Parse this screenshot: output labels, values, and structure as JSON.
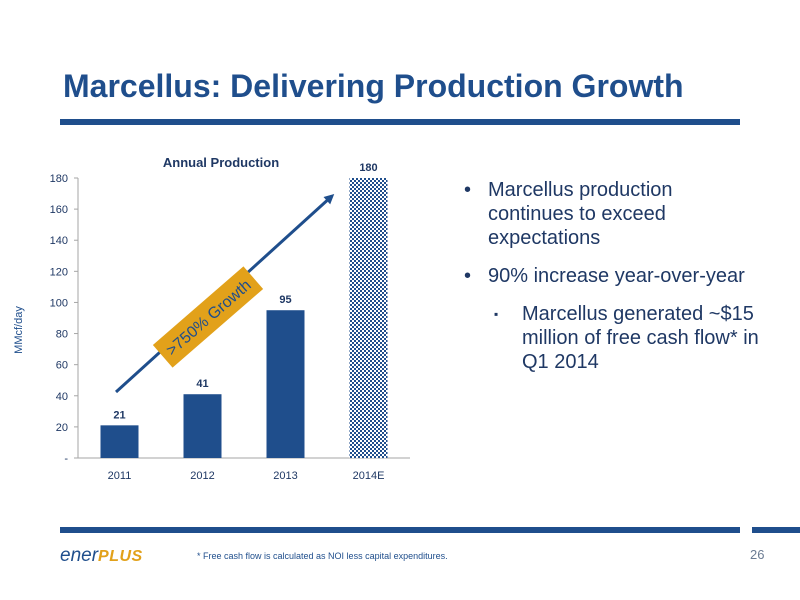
{
  "slide": {
    "title": "Marcellus: Delivering Production Growth",
    "bullets": [
      "Marcellus production continues to exceed expectations",
      "90% increase year-over-year"
    ],
    "sub_bullets": [
      "Marcellus generated ~$15 million of free cash flow* in Q1 2014"
    ],
    "footnote": "* Free cash flow is calculated as NOI less capital expenditures.",
    "page_number": "26",
    "logo": {
      "part1": "ener",
      "part2": "PLUS"
    }
  },
  "colors": {
    "primary": "#1f4e8c",
    "accent": "#e2a11a",
    "text": "#1f3864"
  },
  "chart_data": {
    "type": "bar",
    "title": "Annual Production",
    "ylabel": "MMcf/day",
    "xlabel": "",
    "categories": [
      "2011",
      "2012",
      "2013",
      "2014E"
    ],
    "values": [
      21,
      41,
      95,
      180
    ],
    "data_labels": [
      "21",
      "41",
      "95",
      "180"
    ],
    "estimate_categories": [
      "2014E"
    ],
    "ylim": [
      0,
      180
    ],
    "yticks": [
      0,
      20,
      40,
      60,
      80,
      100,
      120,
      140,
      160,
      180
    ],
    "ytick_labels": [
      "-",
      "20",
      "40",
      "60",
      "80",
      "100",
      "120",
      "140",
      "160",
      "180"
    ],
    "grid": false,
    "annotation": ">750% Growth"
  }
}
